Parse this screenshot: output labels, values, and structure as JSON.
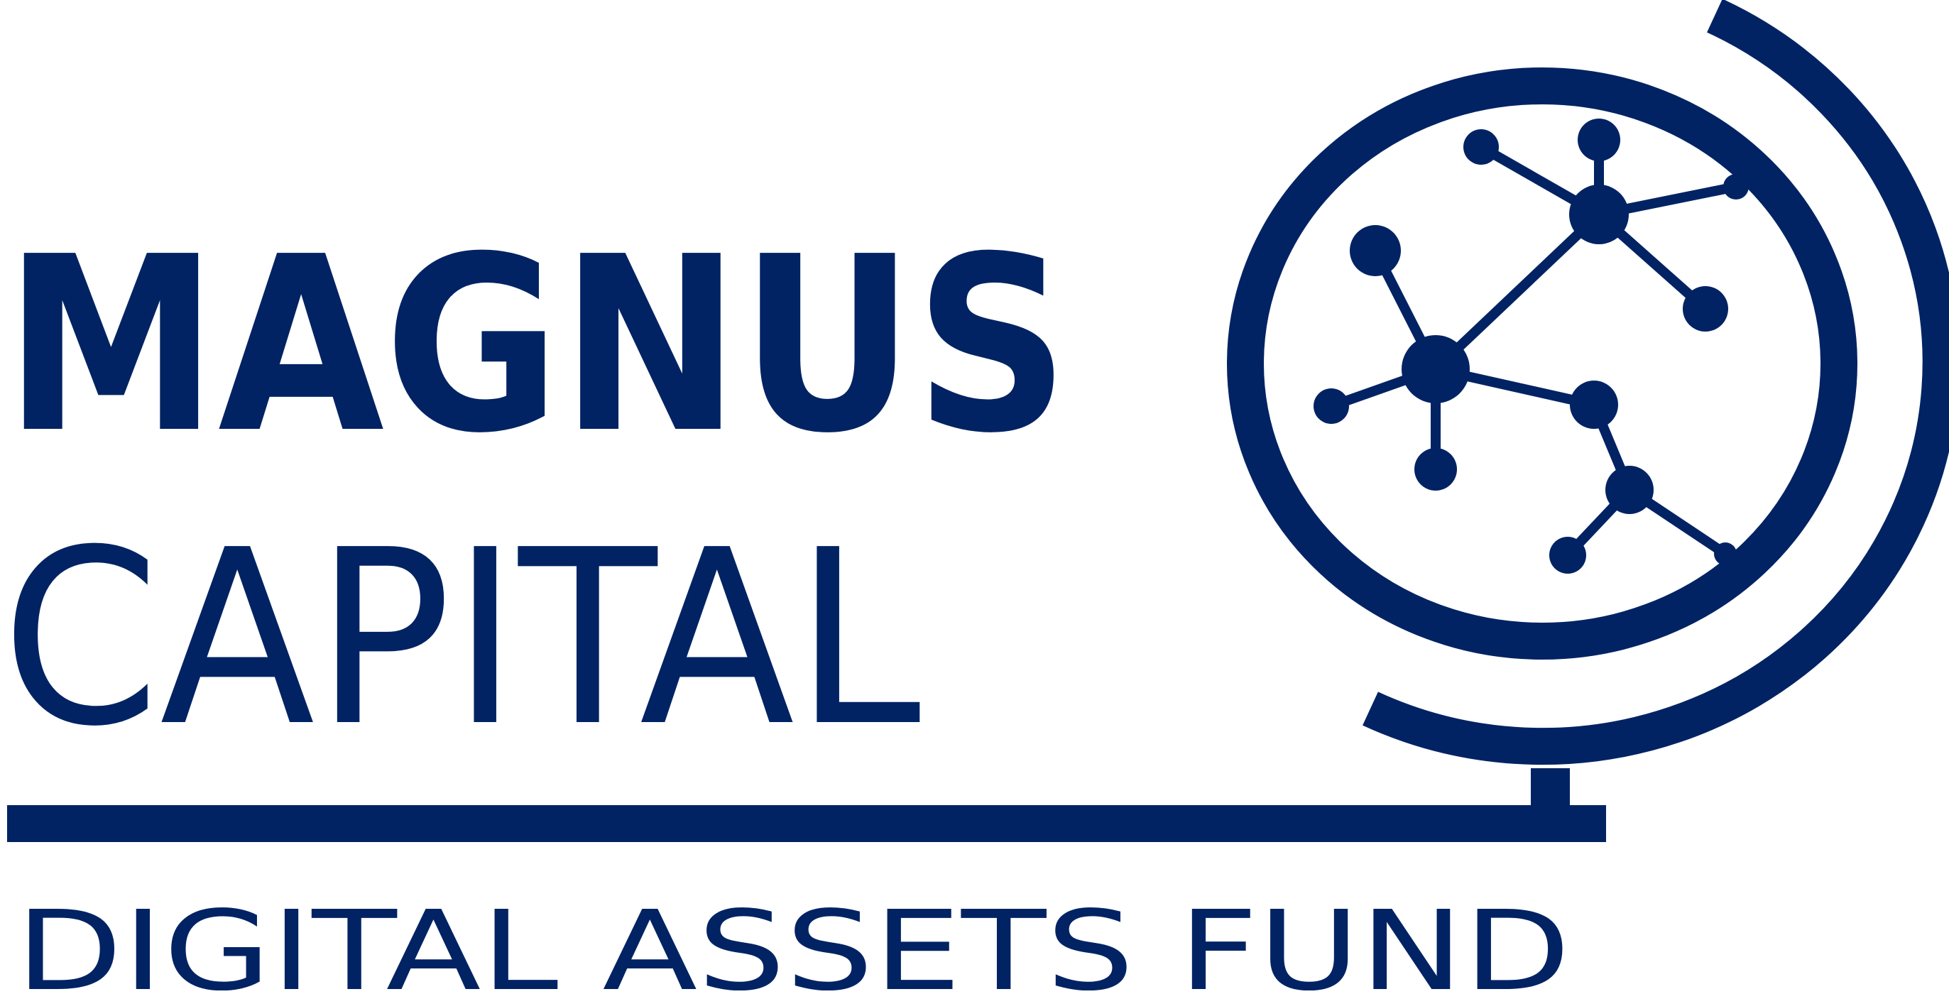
{
  "brand": {
    "line1": "MAGNUS",
    "line2": "CAPITAL",
    "tagline": "DIGITAL ASSETS FUND",
    "color": "#012363"
  },
  "emblem": {
    "icon": "globe-network-icon"
  }
}
